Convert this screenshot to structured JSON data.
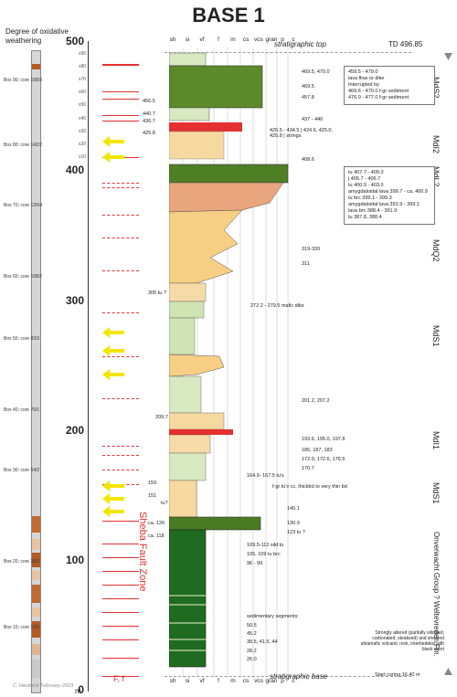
{
  "title": "BASE 1",
  "weathering_label": "Degree of oxidative weathering",
  "top_label": "stratigraphic top",
  "base_label": "stratigraphic base",
  "td_label": "TD 496.85",
  "start_coring": "Start coring 16.40 m",
  "credit": "C. Heubeck February 2023",
  "fault_zone": "Sheba Fault Zone",
  "fault_key": "F, f",
  "m_label": "m",
  "depth_major": [
    "500",
    "400",
    "300",
    "200",
    "100",
    "0"
  ],
  "depth_minor": [
    "x90",
    "x80",
    "x70",
    "x60",
    "x50",
    "x40",
    "x30",
    "x20",
    "x10"
  ],
  "grain_headers": [
    "sh",
    "si",
    "vf",
    "f",
    "m",
    "cs",
    "vcs",
    "gran",
    "p",
    "c"
  ],
  "boxes": [
    "Box 90; core 158/3",
    "Box 80; core 142/2",
    "Box 70; core 126/4",
    "Box 60; core 108/2",
    "Box 50; core 83/3",
    "Box 40; core 70/1",
    "Box 30; core 54/2",
    "Box 20; core 33/3",
    "Box 10; core 12/1"
  ],
  "units": [
    "MdS2",
    "MdI2",
    "MdL2",
    "MdQ2",
    "MdS1",
    "MdI1",
    "MdS1",
    "Onverwacht Group ? Weltevreden Fm."
  ],
  "left_annotations": [
    "456.5",
    "440.7",
    "436.7",
    "425.8",
    "305 tu ?",
    "209.7",
    "159",
    "151",
    "tu?",
    "ca. 126",
    "ca. 118"
  ],
  "right_annotations": [
    "469.5, 470.0",
    "469.5",
    "457.8",
    "437 - 440",
    "426.5 - 434.5 | 424.6, 425.0, 425.8 | strings",
    "408.6",
    "319-320",
    "311",
    "272.2 - 279.5 mafic dike",
    "201.2, 207.2",
    "193.6, 195.0, 197.8",
    "186, 187, 183",
    "172.0, 172.6, 176.5",
    "170.7",
    "164.9- 167.5 tu's",
    "f-gr tu's cc, thickbd to very thin bd",
    "140.1",
    "130.9",
    "123 tu ?",
    "109.5-112 sild tu",
    "105, 109 tu brc",
    "96 - 99",
    "sedimentary segments:",
    "50.5",
    "45.2",
    "38.5, 41.5, 44",
    "28.2",
    "26.0"
  ],
  "note_upper": [
    "459.5 - 479.0",
    "lava flow or dike",
    "",
    "Interrupted by",
    "469.6 - 470.0 f-gr  sediment",
    "476.0 - 477.0 f-gr sediment"
  ],
  "note_lower": [
    "tu 407.7 - 409.3",
    "j 405.7 - 406.7",
    "tu 400.9 - 403.0",
    "amygdaloidal lava 399.7 - ca. 400.9",
    "tu brc 399.1 - 399.3",
    "amygdaloidal lava 391.9 - 399.1",
    "lava brc 388.4 - 391.9",
    "tu 387.8, 388.4"
  ],
  "note_bottom": "Strongly altered (partially silicified, carbonated, steatized) and sheared ultramafic volcanic rock, interbedded with black chert"
}
